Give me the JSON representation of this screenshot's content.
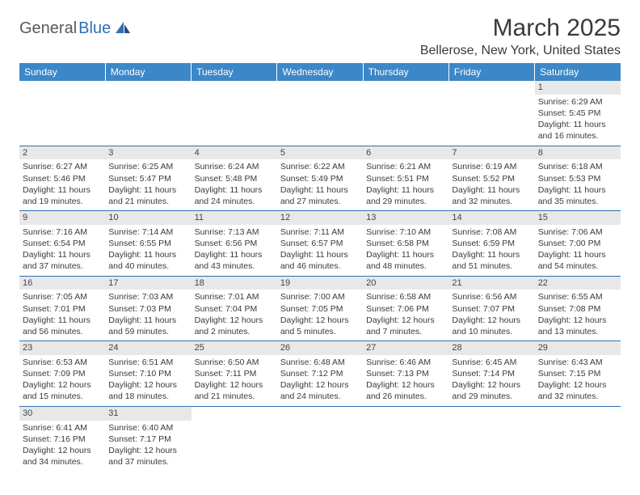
{
  "logo": {
    "text_dark": "General",
    "text_blue": "Blue"
  },
  "title": "March 2025",
  "location": "Bellerose, New York, United States",
  "colors": {
    "header_bg": "#3b87c8",
    "header_text": "#ffffff",
    "border": "#2f6fb5",
    "daynum_bg": "#e8e8e8",
    "text": "#3a3a3a",
    "logo_blue": "#2f6fb5",
    "logo_dark": "#5a5a5a"
  },
  "day_headers": [
    "Sunday",
    "Monday",
    "Tuesday",
    "Wednesday",
    "Thursday",
    "Friday",
    "Saturday"
  ],
  "weeks": [
    [
      {
        "day": null
      },
      {
        "day": null
      },
      {
        "day": null
      },
      {
        "day": null
      },
      {
        "day": null
      },
      {
        "day": null
      },
      {
        "day": 1,
        "sunrise": "6:29 AM",
        "sunset": "5:45 PM",
        "daylight": "11 hours and 16 minutes."
      }
    ],
    [
      {
        "day": 2,
        "sunrise": "6:27 AM",
        "sunset": "5:46 PM",
        "daylight": "11 hours and 19 minutes."
      },
      {
        "day": 3,
        "sunrise": "6:25 AM",
        "sunset": "5:47 PM",
        "daylight": "11 hours and 21 minutes."
      },
      {
        "day": 4,
        "sunrise": "6:24 AM",
        "sunset": "5:48 PM",
        "daylight": "11 hours and 24 minutes."
      },
      {
        "day": 5,
        "sunrise": "6:22 AM",
        "sunset": "5:49 PM",
        "daylight": "11 hours and 27 minutes."
      },
      {
        "day": 6,
        "sunrise": "6:21 AM",
        "sunset": "5:51 PM",
        "daylight": "11 hours and 29 minutes."
      },
      {
        "day": 7,
        "sunrise": "6:19 AM",
        "sunset": "5:52 PM",
        "daylight": "11 hours and 32 minutes."
      },
      {
        "day": 8,
        "sunrise": "6:18 AM",
        "sunset": "5:53 PM",
        "daylight": "11 hours and 35 minutes."
      }
    ],
    [
      {
        "day": 9,
        "sunrise": "7:16 AM",
        "sunset": "6:54 PM",
        "daylight": "11 hours and 37 minutes."
      },
      {
        "day": 10,
        "sunrise": "7:14 AM",
        "sunset": "6:55 PM",
        "daylight": "11 hours and 40 minutes."
      },
      {
        "day": 11,
        "sunrise": "7:13 AM",
        "sunset": "6:56 PM",
        "daylight": "11 hours and 43 minutes."
      },
      {
        "day": 12,
        "sunrise": "7:11 AM",
        "sunset": "6:57 PM",
        "daylight": "11 hours and 46 minutes."
      },
      {
        "day": 13,
        "sunrise": "7:10 AM",
        "sunset": "6:58 PM",
        "daylight": "11 hours and 48 minutes."
      },
      {
        "day": 14,
        "sunrise": "7:08 AM",
        "sunset": "6:59 PM",
        "daylight": "11 hours and 51 minutes."
      },
      {
        "day": 15,
        "sunrise": "7:06 AM",
        "sunset": "7:00 PM",
        "daylight": "11 hours and 54 minutes."
      }
    ],
    [
      {
        "day": 16,
        "sunrise": "7:05 AM",
        "sunset": "7:01 PM",
        "daylight": "11 hours and 56 minutes."
      },
      {
        "day": 17,
        "sunrise": "7:03 AM",
        "sunset": "7:03 PM",
        "daylight": "11 hours and 59 minutes."
      },
      {
        "day": 18,
        "sunrise": "7:01 AM",
        "sunset": "7:04 PM",
        "daylight": "12 hours and 2 minutes."
      },
      {
        "day": 19,
        "sunrise": "7:00 AM",
        "sunset": "7:05 PM",
        "daylight": "12 hours and 5 minutes."
      },
      {
        "day": 20,
        "sunrise": "6:58 AM",
        "sunset": "7:06 PM",
        "daylight": "12 hours and 7 minutes."
      },
      {
        "day": 21,
        "sunrise": "6:56 AM",
        "sunset": "7:07 PM",
        "daylight": "12 hours and 10 minutes."
      },
      {
        "day": 22,
        "sunrise": "6:55 AM",
        "sunset": "7:08 PM",
        "daylight": "12 hours and 13 minutes."
      }
    ],
    [
      {
        "day": 23,
        "sunrise": "6:53 AM",
        "sunset": "7:09 PM",
        "daylight": "12 hours and 15 minutes."
      },
      {
        "day": 24,
        "sunrise": "6:51 AM",
        "sunset": "7:10 PM",
        "daylight": "12 hours and 18 minutes."
      },
      {
        "day": 25,
        "sunrise": "6:50 AM",
        "sunset": "7:11 PM",
        "daylight": "12 hours and 21 minutes."
      },
      {
        "day": 26,
        "sunrise": "6:48 AM",
        "sunset": "7:12 PM",
        "daylight": "12 hours and 24 minutes."
      },
      {
        "day": 27,
        "sunrise": "6:46 AM",
        "sunset": "7:13 PM",
        "daylight": "12 hours and 26 minutes."
      },
      {
        "day": 28,
        "sunrise": "6:45 AM",
        "sunset": "7:14 PM",
        "daylight": "12 hours and 29 minutes."
      },
      {
        "day": 29,
        "sunrise": "6:43 AM",
        "sunset": "7:15 PM",
        "daylight": "12 hours and 32 minutes."
      }
    ],
    [
      {
        "day": 30,
        "sunrise": "6:41 AM",
        "sunset": "7:16 PM",
        "daylight": "12 hours and 34 minutes."
      },
      {
        "day": 31,
        "sunrise": "6:40 AM",
        "sunset": "7:17 PM",
        "daylight": "12 hours and 37 minutes."
      },
      {
        "day": null
      },
      {
        "day": null
      },
      {
        "day": null
      },
      {
        "day": null
      },
      {
        "day": null
      }
    ]
  ],
  "labels": {
    "sunrise": "Sunrise:",
    "sunset": "Sunset:",
    "daylight": "Daylight:"
  }
}
